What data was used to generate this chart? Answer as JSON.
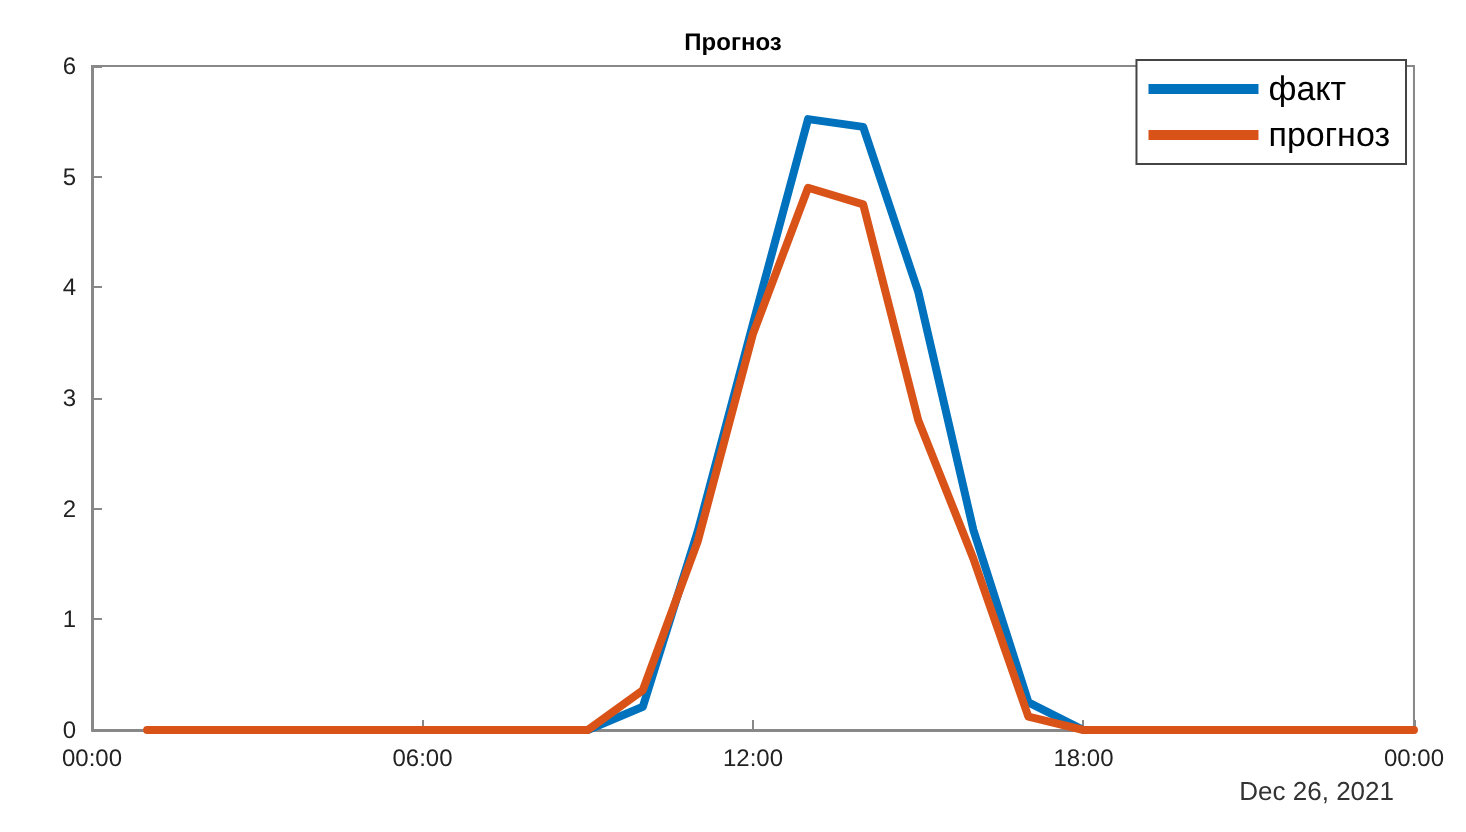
{
  "chart_data": {
    "type": "line",
    "title": "Прогноз",
    "x": [
      "2021-12-26T01:00",
      "2021-12-26T02:00",
      "2021-12-26T03:00",
      "2021-12-26T04:00",
      "2021-12-26T05:00",
      "2021-12-26T06:00",
      "2021-12-26T07:00",
      "2021-12-26T08:00",
      "2021-12-26T09:00",
      "2021-12-26T10:00",
      "2021-12-26T11:00",
      "2021-12-26T12:00",
      "2021-12-26T13:00",
      "2021-12-26T14:00",
      "2021-12-26T15:00",
      "2021-12-26T16:00",
      "2021-12-26T17:00",
      "2021-12-26T18:00",
      "2021-12-26T19:00",
      "2021-12-26T20:00",
      "2021-12-26T21:00",
      "2021-12-26T22:00",
      "2021-12-26T23:00",
      "2021-12-27T00:00"
    ],
    "series": [
      {
        "name": "факт",
        "color": "#0072bd",
        "values": [
          null,
          null,
          null,
          null,
          null,
          null,
          null,
          null,
          0,
          0.21,
          1.8,
          3.67,
          5.52,
          5.45,
          3.96,
          1.81,
          0.25,
          0,
          null,
          null,
          null,
          null,
          null,
          null
        ]
      },
      {
        "name": "прогноз",
        "color": "#d95319",
        "values": [
          0,
          0,
          0,
          0,
          0,
          0,
          0,
          0,
          0,
          0.36,
          1.71,
          3.58,
          4.9,
          4.75,
          2.8,
          1.55,
          0.12,
          0,
          0,
          0,
          0,
          0,
          0,
          0
        ]
      }
    ],
    "xlim": [
      "2021-12-26T00:00",
      "2021-12-27T00:00"
    ],
    "xticks": [
      {
        "value": "2021-12-26T00:00",
        "label": "00:00"
      },
      {
        "value": "2021-12-26T06:00",
        "label": "06:00"
      },
      {
        "value": "2021-12-26T12:00",
        "label": "12:00"
      },
      {
        "value": "2021-12-26T18:00",
        "label": "18:00"
      },
      {
        "value": "2021-12-27T00:00",
        "label": "00:00"
      }
    ],
    "ylim": [
      0,
      6
    ],
    "yticks": [
      0,
      1,
      2,
      3,
      4,
      5,
      6
    ],
    "annotations": [
      "Dec 26, 2021"
    ],
    "grid": false,
    "legend": "top right",
    "marker": "none",
    "line_style": "solid"
  }
}
